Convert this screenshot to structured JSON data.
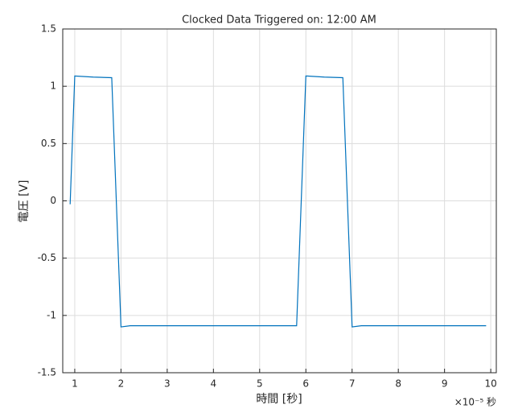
{
  "chart_data": {
    "type": "line",
    "title": "Clocked Data Triggered on: 12:00 AM",
    "x_label": "時間 [秒]",
    "y_label": "電圧 [V]",
    "x_multiplier": "×10⁻⁵ 秒",
    "x": [
      0.9,
      1.0,
      1.4,
      1.8,
      2.0,
      2.2,
      2.6,
      3,
      4,
      5,
      5.8,
      6.0,
      6.4,
      6.8,
      7.0,
      7.2,
      7.6,
      8,
      9,
      9.9
    ],
    "series": [
      {
        "color": "#0072bd",
        "values": [
          -0.03,
          1.09,
          1.08,
          1.075,
          -1.1,
          -1.09,
          -1.09,
          -1.09,
          -1.09,
          -1.09,
          -1.09,
          1.09,
          1.08,
          1.075,
          -1.1,
          -1.09,
          -1.09,
          -1.09,
          -1.09,
          -1.09
        ]
      }
    ],
    "xlim": [
      0.74,
      10.12
    ],
    "ylim": [
      -1.5,
      1.5
    ],
    "xticks": [
      1,
      2,
      3,
      4,
      5,
      6,
      7,
      8,
      9,
      10
    ],
    "yticks": [
      -1.5,
      -1,
      -0.5,
      0,
      0.5,
      1,
      1.5
    ],
    "grid": true
  }
}
